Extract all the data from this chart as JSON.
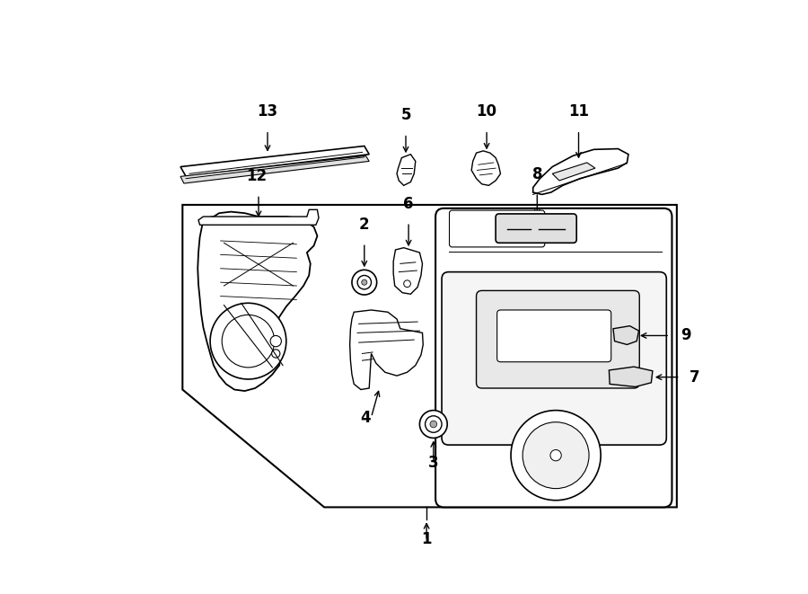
{
  "background_color": "#ffffff",
  "line_color": "#000000",
  "fig_width": 9.0,
  "fig_height": 6.61,
  "dpi": 100
}
